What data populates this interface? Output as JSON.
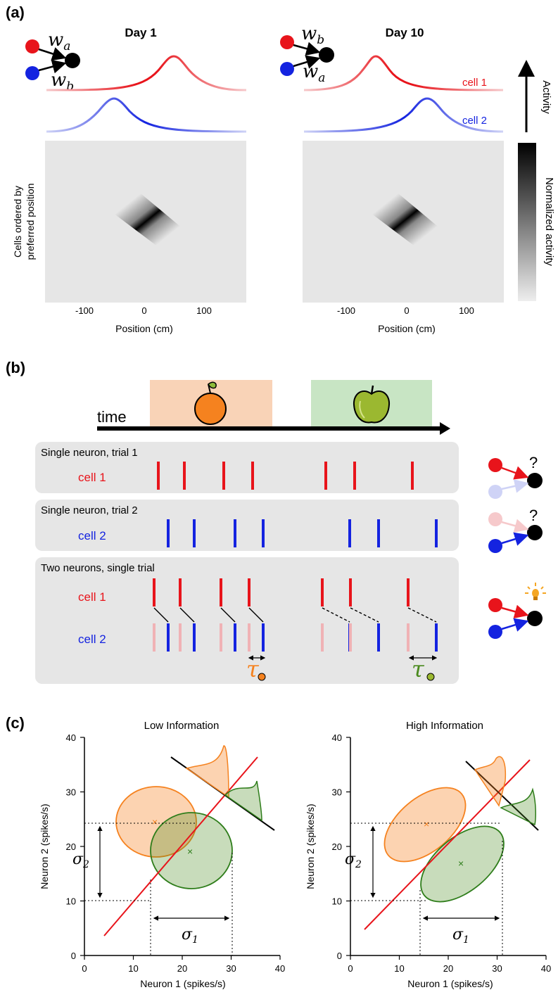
{
  "panel_a": {
    "label": "(a)",
    "day1": {
      "title": "Day 1",
      "w_top": "w",
      "w_top_sub": "a",
      "w_bottom": "w",
      "w_bottom_sub": "b"
    },
    "day10": {
      "title": "Day 10",
      "w_top": "w",
      "w_top_sub": "b",
      "w_bottom": "w",
      "w_bottom_sub": "a"
    },
    "cell1": "cell 1",
    "cell2": "cell 2",
    "activity": "Activity",
    "colorbar_label": "Normalized activity",
    "ylabel_line1": "Cells ordered by",
    "ylabel_line2": "preferred position",
    "xlabel": "Position (cm)",
    "xticks": [
      "-100",
      "0",
      "100"
    ]
  },
  "panel_b": {
    "label": "(b)",
    "time": "time",
    "trial1_label": "Single neuron, trial 1",
    "trial2_label": "Single neuron, trial 2",
    "trial3_label": "Two neurons, single trial",
    "cell1": "cell 1",
    "cell2": "cell 2",
    "question": "?",
    "tau": "τ",
    "colors": {
      "red": "#e8141b",
      "blue": "#1423e0",
      "orange": "#f5821f",
      "green": "#4a8a1e"
    }
  },
  "panel_c": {
    "label": "(c)",
    "low": {
      "title": "Low Information",
      "xlabel": "Neuron 1 (spikes/s)",
      "ylabel": "Neuron 2 (spikes/s)",
      "xticks": [
        "0",
        "10",
        "20",
        "30",
        "40"
      ],
      "yticks": [
        "0",
        "10",
        "20",
        "30",
        "40"
      ],
      "sigma1": "σ",
      "sigma1_sub": "1",
      "sigma2": "σ",
      "sigma2_sub": "2"
    },
    "high": {
      "title": "High Information",
      "xlabel": "Neuron 1 (spikes/s)",
      "ylabel": "Neuron 2 (spikes/s)",
      "xticks": [
        "0",
        "10",
        "20",
        "30",
        "40"
      ],
      "yticks": [
        "0",
        "10",
        "20",
        "30",
        "40"
      ],
      "sigma1": "σ",
      "sigma1_sub": "1",
      "sigma2": "σ",
      "sigma2_sub": "2"
    }
  }
}
